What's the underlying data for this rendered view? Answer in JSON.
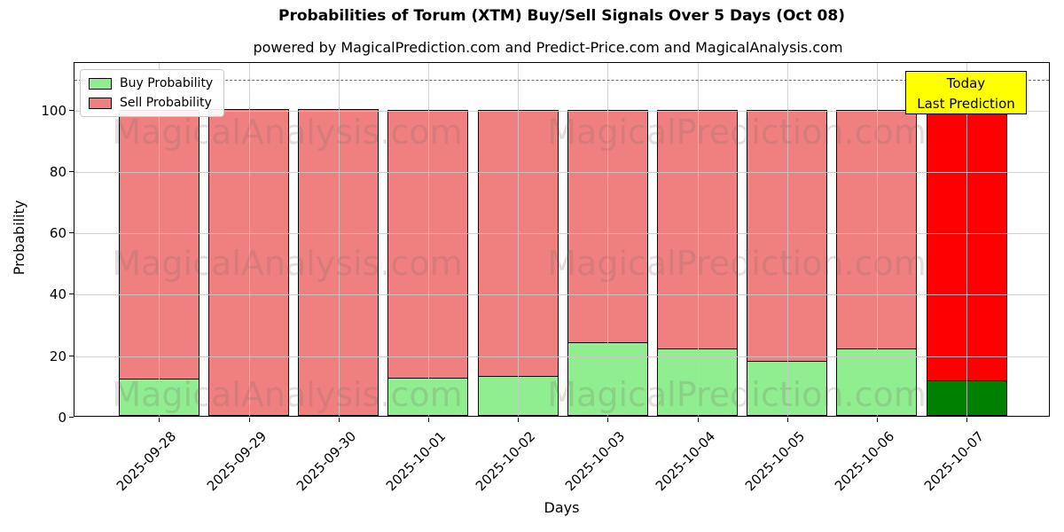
{
  "title": "Probabilities of Torum (XTM) Buy/Sell Signals Over 5 Days (Oct 08)",
  "subtitle": "powered by MagicalPrediction.com and Predict-Price.com and MagicalAnalysis.com",
  "axes": {
    "x_label": "Days",
    "y_label": "Probability"
  },
  "legend": {
    "buy_label": "Buy Probability",
    "sell_label": "Sell Probability"
  },
  "annotation": {
    "line1": "Today",
    "line2": "Last Prediction"
  },
  "watermarks": {
    "left_text": "MagicalAnalysis.com",
    "right_text": "MagicalPrediction.com"
  },
  "colors": {
    "buy": "#90ee90",
    "sell": "#f08080",
    "buy_today": "#008000",
    "sell_today": "#ff0000",
    "annotation_bg": "#ffff00",
    "grid": "#c9c9c9",
    "dashed_line": "#6e6e6e",
    "bar_edge": "#000000"
  },
  "chart_data": {
    "type": "bar",
    "stacked": true,
    "title": "Probabilities of Torum (XTM) Buy/Sell Signals Over 5 Days (Oct 08)",
    "xlabel": "Days",
    "ylabel": "Probability",
    "categories": [
      "2025-09-28",
      "2025-09-29",
      "2025-09-30",
      "2025-10-01",
      "2025-10-02",
      "2025-10-03",
      "2025-10-04",
      "2025-10-05",
      "2025-10-06",
      "2025-10-07"
    ],
    "series": [
      {
        "name": "Buy Probability",
        "values": [
          12,
          0,
          0,
          12.5,
          13,
          24,
          22,
          18,
          22,
          11.5
        ]
      },
      {
        "name": "Sell Probability",
        "values": [
          88,
          100,
          100,
          87.5,
          87,
          76,
          78,
          82,
          78,
          88.5
        ]
      }
    ],
    "today_index": 9,
    "dashed_line_y": 110,
    "ylim": [
      0,
      115.5
    ],
    "yticks": [
      0,
      20,
      40,
      60,
      80,
      100
    ],
    "grid": true,
    "legend_position": "upper left"
  }
}
